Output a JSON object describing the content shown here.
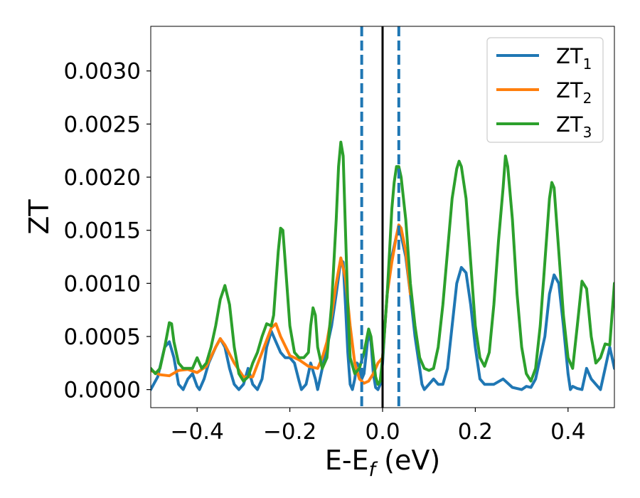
{
  "chart_data": {
    "type": "line",
    "title": "",
    "xlabel": "E-E_f (eV)",
    "ylabel": "ZT",
    "xlim": [
      -0.5,
      0.5
    ],
    "ylim": [
      -0.00017,
      0.00342
    ],
    "xticks": [
      -0.4,
      -0.2,
      0.0,
      0.2,
      0.4
    ],
    "xtick_labels": [
      "−0.4",
      "−0.2",
      "0.0",
      "0.2",
      "0.4"
    ],
    "yticks": [
      0.0,
      0.0005,
      0.001,
      0.0015,
      0.002,
      0.0025,
      0.003
    ],
    "ytick_labels": [
      "0.0000",
      "0.0005",
      "0.0010",
      "0.0015",
      "0.0020",
      "0.0025",
      "0.0030"
    ],
    "legend_position": "upper right",
    "grid": false,
    "vlines": [
      {
        "x": -0.045,
        "style": "dashed",
        "color": "#1f77b4"
      },
      {
        "x": 0.0,
        "style": "solid",
        "color": "#000000"
      },
      {
        "x": 0.035,
        "style": "dashed",
        "color": "#1f77b4"
      }
    ],
    "series": [
      {
        "name": "ZT1",
        "label_base": "ZT",
        "label_sub": "1",
        "color": "#1f77b4",
        "points": [
          [
            -0.5,
            0.0
          ],
          [
            -0.485,
            0.00012
          ],
          [
            -0.47,
            0.0004
          ],
          [
            -0.46,
            0.00045
          ],
          [
            -0.45,
            0.0003
          ],
          [
            -0.44,
            5e-05
          ],
          [
            -0.43,
            0.0
          ],
          [
            -0.42,
            0.0001
          ],
          [
            -0.41,
            0.00015
          ],
          [
            -0.4,
            3e-05
          ],
          [
            -0.395,
            0.0
          ],
          [
            -0.385,
            0.0001
          ],
          [
            -0.375,
            0.00025
          ],
          [
            -0.36,
            0.0004
          ],
          [
            -0.35,
            0.00048
          ],
          [
            -0.34,
            0.0004
          ],
          [
            -0.33,
            0.0002
          ],
          [
            -0.32,
            5e-05
          ],
          [
            -0.31,
            0.0
          ],
          [
            -0.3,
            5e-05
          ],
          [
            -0.29,
            0.0002
          ],
          [
            -0.28,
            5e-05
          ],
          [
            -0.27,
            0.0
          ],
          [
            -0.26,
            0.0001
          ],
          [
            -0.25,
            0.0004
          ],
          [
            -0.24,
            0.00055
          ],
          [
            -0.23,
            0.00045
          ],
          [
            -0.22,
            0.00035
          ],
          [
            -0.21,
            0.0003
          ],
          [
            -0.2,
            0.0003
          ],
          [
            -0.19,
            0.00025
          ],
          [
            -0.18,
            8e-05
          ],
          [
            -0.175,
            0.0
          ],
          [
            -0.165,
            5e-05
          ],
          [
            -0.155,
            0.00025
          ],
          [
            -0.145,
            0.0001
          ],
          [
            -0.14,
            0.0
          ],
          [
            -0.13,
            0.0002
          ],
          [
            -0.12,
            0.0004
          ],
          [
            -0.11,
            0.0006
          ],
          [
            -0.1,
            0.0009
          ],
          [
            -0.09,
            0.00122
          ],
          [
            -0.085,
            0.0012
          ],
          [
            -0.08,
            0.0008
          ],
          [
            -0.075,
            0.00035
          ],
          [
            -0.07,
            5e-05
          ],
          [
            -0.065,
            0.0
          ],
          [
            -0.06,
            0.0001
          ],
          [
            -0.055,
            0.00025
          ],
          [
            -0.05,
            0.00022
          ],
          [
            -0.045,
            0.0001
          ],
          [
            -0.04,
            0.00015
          ],
          [
            -0.035,
            0.00035
          ],
          [
            -0.03,
            0.00055
          ],
          [
            -0.025,
            0.00045
          ],
          [
            -0.02,
            0.00015
          ],
          [
            -0.015,
            2e-05
          ],
          [
            -0.01,
            0.0
          ],
          [
            -0.005,
            5e-05
          ],
          [
            0.0,
            0.00025
          ],
          [
            0.005,
            0.0006
          ],
          [
            0.01,
            0.0009
          ],
          [
            0.015,
            0.00115
          ],
          [
            0.02,
            0.00125
          ],
          [
            0.025,
            0.00135
          ],
          [
            0.03,
            0.00145
          ],
          [
            0.035,
            0.0015
          ],
          [
            0.04,
            0.00145
          ],
          [
            0.05,
            0.00125
          ],
          [
            0.06,
            0.0009
          ],
          [
            0.07,
            0.0005
          ],
          [
            0.08,
            0.0002
          ],
          [
            0.085,
            5e-05
          ],
          [
            0.09,
            0.0
          ],
          [
            0.1,
            5e-05
          ],
          [
            0.11,
            0.0001
          ],
          [
            0.12,
            5e-05
          ],
          [
            0.13,
            5e-05
          ],
          [
            0.14,
            0.0002
          ],
          [
            0.15,
            0.0006
          ],
          [
            0.16,
            0.001
          ],
          [
            0.17,
            0.00115
          ],
          [
            0.18,
            0.0011
          ],
          [
            0.19,
            0.0008
          ],
          [
            0.2,
            0.0004
          ],
          [
            0.21,
            0.0001
          ],
          [
            0.22,
            5e-05
          ],
          [
            0.24,
            5e-05
          ],
          [
            0.26,
            0.0001
          ],
          [
            0.28,
            2e-05
          ],
          [
            0.3,
            0.0
          ],
          [
            0.31,
            3e-05
          ],
          [
            0.32,
            2e-05
          ],
          [
            0.33,
            0.0001
          ],
          [
            0.35,
            0.0005
          ],
          [
            0.36,
            0.0009
          ],
          [
            0.37,
            0.00108
          ],
          [
            0.38,
            0.001
          ],
          [
            0.39,
            0.0006
          ],
          [
            0.4,
            0.00015
          ],
          [
            0.405,
            0.0
          ],
          [
            0.41,
            3e-05
          ],
          [
            0.42,
            1e-05
          ],
          [
            0.43,
            0.0
          ],
          [
            0.44,
            0.0002
          ],
          [
            0.45,
            0.0001
          ],
          [
            0.46,
            5e-05
          ],
          [
            0.47,
            0.0
          ],
          [
            0.48,
            0.0002
          ],
          [
            0.49,
            0.0004
          ],
          [
            0.5,
            0.0002
          ]
        ]
      },
      {
        "name": "ZT2",
        "label_base": "ZT",
        "label_sub": "2",
        "color": "#ff7f0e",
        "points": [
          [
            -0.5,
            0.00018
          ],
          [
            -0.48,
            0.00014
          ],
          [
            -0.46,
            0.00013
          ],
          [
            -0.44,
            0.00018
          ],
          [
            -0.42,
            0.00019
          ],
          [
            -0.4,
            0.00016
          ],
          [
            -0.38,
            0.00022
          ],
          [
            -0.36,
            0.0004
          ],
          [
            -0.35,
            0.00048
          ],
          [
            -0.34,
            0.00042
          ],
          [
            -0.32,
            0.00025
          ],
          [
            -0.3,
            0.00012
          ],
          [
            -0.28,
            0.00012
          ],
          [
            -0.26,
            0.00035
          ],
          [
            -0.24,
            0.00058
          ],
          [
            -0.23,
            0.00062
          ],
          [
            -0.22,
            0.0005
          ],
          [
            -0.2,
            0.00032
          ],
          [
            -0.18,
            0.00028
          ],
          [
            -0.16,
            0.00022
          ],
          [
            -0.14,
            0.0002
          ],
          [
            -0.13,
            0.0003
          ],
          [
            -0.12,
            0.00045
          ],
          [
            -0.11,
            0.0007
          ],
          [
            -0.1,
            0.001
          ],
          [
            -0.09,
            0.00124
          ],
          [
            -0.08,
            0.00105
          ],
          [
            -0.07,
            0.0006
          ],
          [
            -0.06,
            0.00025
          ],
          [
            -0.05,
            0.0001
          ],
          [
            -0.04,
            6e-05
          ],
          [
            -0.03,
            8e-05
          ],
          [
            -0.02,
            0.00015
          ],
          [
            -0.01,
            0.00025
          ],
          [
            0.0,
            0.0003
          ],
          [
            0.005,
            0.0006
          ],
          [
            0.01,
            0.0009
          ],
          [
            0.02,
            0.0012
          ],
          [
            0.03,
            0.00145
          ],
          [
            0.035,
            0.00155
          ],
          [
            0.04,
            0.00152
          ],
          [
            0.05,
            0.0013
          ],
          [
            0.06,
            0.0009
          ]
        ]
      },
      {
        "name": "ZT3",
        "label_base": "ZT",
        "label_sub": "3",
        "color": "#2ca02c",
        "points": [
          [
            -0.5,
            0.0002
          ],
          [
            -0.49,
            0.00015
          ],
          [
            -0.48,
            0.0002
          ],
          [
            -0.47,
            0.0004
          ],
          [
            -0.46,
            0.00063
          ],
          [
            -0.455,
            0.00062
          ],
          [
            -0.45,
            0.00045
          ],
          [
            -0.44,
            0.00025
          ],
          [
            -0.43,
            0.0002
          ],
          [
            -0.42,
            0.0002
          ],
          [
            -0.41,
            0.0002
          ],
          [
            -0.4,
            0.0003
          ],
          [
            -0.39,
            0.0002
          ],
          [
            -0.38,
            0.00025
          ],
          [
            -0.37,
            0.0004
          ],
          [
            -0.36,
            0.0006
          ],
          [
            -0.35,
            0.00085
          ],
          [
            -0.34,
            0.00098
          ],
          [
            -0.33,
            0.0008
          ],
          [
            -0.32,
            0.0004
          ],
          [
            -0.31,
            0.00015
          ],
          [
            -0.3,
            8e-05
          ],
          [
            -0.29,
            0.00012
          ],
          [
            -0.28,
            0.00025
          ],
          [
            -0.27,
            0.00035
          ],
          [
            -0.26,
            0.0005
          ],
          [
            -0.25,
            0.00062
          ],
          [
            -0.24,
            0.0006
          ],
          [
            -0.235,
            0.0007
          ],
          [
            -0.23,
            0.001
          ],
          [
            -0.225,
            0.0013
          ],
          [
            -0.22,
            0.00152
          ],
          [
            -0.215,
            0.0015
          ],
          [
            -0.21,
            0.0012
          ],
          [
            -0.2,
            0.0006
          ],
          [
            -0.19,
            0.00035
          ],
          [
            -0.18,
            0.0003
          ],
          [
            -0.17,
            0.0003
          ],
          [
            -0.16,
            0.00035
          ],
          [
            -0.155,
            0.0006
          ],
          [
            -0.15,
            0.00077
          ],
          [
            -0.145,
            0.0007
          ],
          [
            -0.14,
            0.0004
          ],
          [
            -0.13,
            0.0002
          ],
          [
            -0.12,
            0.0003
          ],
          [
            -0.11,
            0.0008
          ],
          [
            -0.1,
            0.0016
          ],
          [
            -0.095,
            0.0021
          ],
          [
            -0.09,
            0.00233
          ],
          [
            -0.085,
            0.0022
          ],
          [
            -0.08,
            0.0015
          ],
          [
            -0.075,
            0.0008
          ],
          [
            -0.07,
            0.0003
          ],
          [
            -0.06,
            0.00015
          ],
          [
            -0.05,
            0.0002
          ],
          [
            -0.04,
            0.00035
          ],
          [
            -0.03,
            0.00057
          ],
          [
            -0.025,
            0.0005
          ],
          [
            -0.02,
            0.0003
          ],
          [
            -0.015,
            0.00012
          ],
          [
            -0.01,
            5e-05
          ],
          [
            -0.005,
            8e-05
          ],
          [
            0.0,
            0.0003
          ],
          [
            0.005,
            0.0006
          ],
          [
            0.01,
            0.0009
          ],
          [
            0.015,
            0.0013
          ],
          [
            0.02,
            0.0017
          ],
          [
            0.025,
            0.00195
          ],
          [
            0.03,
            0.0021
          ],
          [
            0.035,
            0.0021
          ],
          [
            0.04,
            0.002
          ],
          [
            0.05,
            0.0016
          ],
          [
            0.06,
            0.001
          ],
          [
            0.07,
            0.0006
          ],
          [
            0.08,
            0.0003
          ],
          [
            0.09,
            0.0002
          ],
          [
            0.1,
            0.00018
          ],
          [
            0.11,
            0.0002
          ],
          [
            0.12,
            0.0004
          ],
          [
            0.13,
            0.0008
          ],
          [
            0.14,
            0.0013
          ],
          [
            0.15,
            0.0018
          ],
          [
            0.16,
            0.00208
          ],
          [
            0.165,
            0.00215
          ],
          [
            0.17,
            0.0021
          ],
          [
            0.18,
            0.0018
          ],
          [
            0.19,
            0.0012
          ],
          [
            0.2,
            0.0006
          ],
          [
            0.21,
            0.0003
          ],
          [
            0.22,
            0.00022
          ],
          [
            0.23,
            0.00035
          ],
          [
            0.24,
            0.0008
          ],
          [
            0.25,
            0.0014
          ],
          [
            0.26,
            0.0019
          ],
          [
            0.265,
            0.0022
          ],
          [
            0.27,
            0.0021
          ],
          [
            0.28,
            0.0016
          ],
          [
            0.29,
            0.0009
          ],
          [
            0.3,
            0.0004
          ],
          [
            0.31,
            0.00015
          ],
          [
            0.32,
            8e-05
          ],
          [
            0.33,
            0.0002
          ],
          [
            0.34,
            0.0006
          ],
          [
            0.35,
            0.0012
          ],
          [
            0.36,
            0.0018
          ],
          [
            0.365,
            0.00195
          ],
          [
            0.37,
            0.0019
          ],
          [
            0.38,
            0.0013
          ],
          [
            0.39,
            0.0007
          ],
          [
            0.4,
            0.0003
          ],
          [
            0.41,
            0.0002
          ],
          [
            0.42,
            0.0006
          ],
          [
            0.43,
            0.00102
          ],
          [
            0.44,
            0.00095
          ],
          [
            0.45,
            0.0005
          ],
          [
            0.46,
            0.00025
          ],
          [
            0.47,
            0.0003
          ],
          [
            0.48,
            0.00043
          ],
          [
            0.49,
            0.00042
          ],
          [
            0.5,
            0.001
          ]
        ]
      }
    ]
  }
}
